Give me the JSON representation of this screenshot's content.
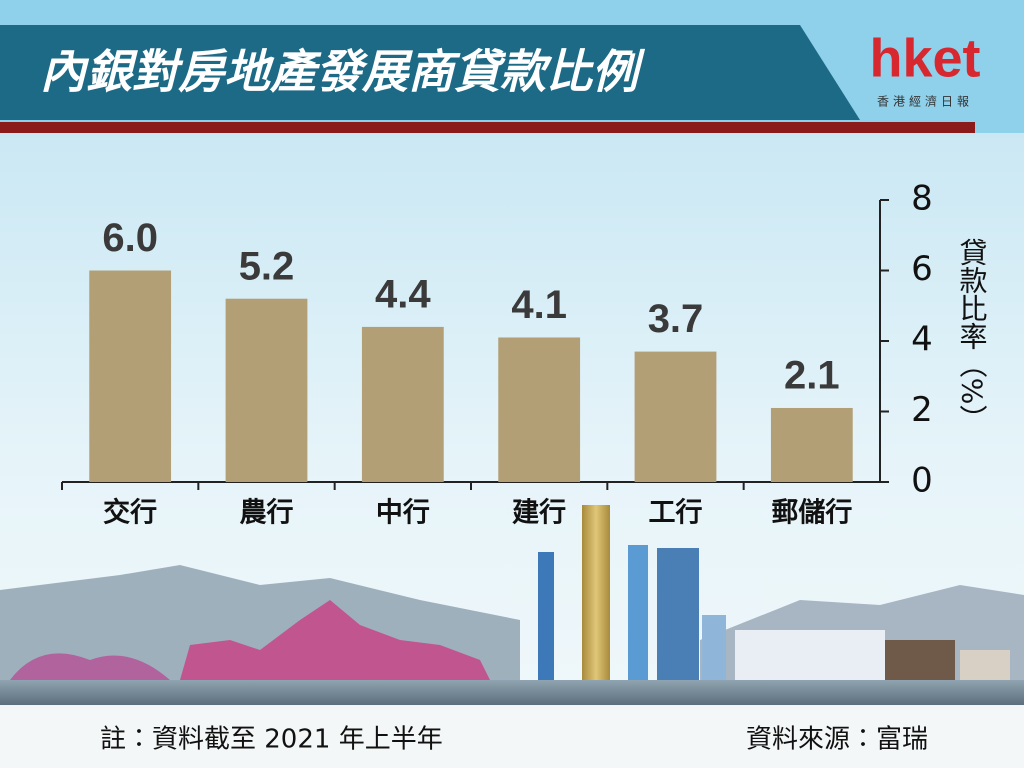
{
  "header": {
    "logo": "hket",
    "logo_subtitle": "香港經濟日報"
  },
  "chart_data": {
    "type": "bar",
    "title": "內銀對房地產發展商貸款比例",
    "categories": [
      "交行",
      "農行",
      "中行",
      "建行",
      "工行",
      "郵儲行"
    ],
    "values": [
      6.0,
      5.2,
      4.4,
      4.1,
      3.7,
      2.1
    ],
    "value_labels": [
      "6.0",
      "5.2",
      "4.4",
      "4.1",
      "3.7",
      "2.1"
    ],
    "color": "#b39f76",
    "y_label": "貸款比率（%）",
    "ylim": [
      0,
      8
    ],
    "yticks": [
      0,
      2,
      4,
      6,
      8
    ],
    "y_axis_side": "right",
    "grid": false,
    "note": "註：資料截至 2021 年上半年",
    "source": "資料來源：富瑞"
  }
}
